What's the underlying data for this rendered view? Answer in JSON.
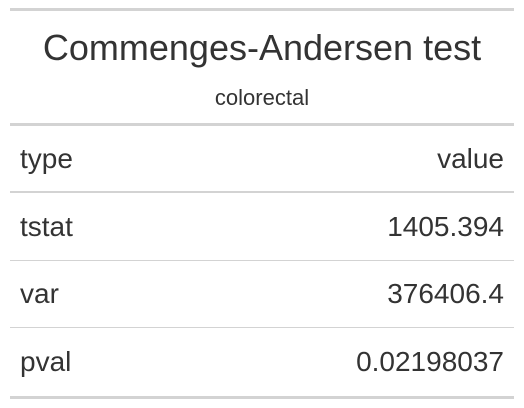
{
  "table": {
    "title": "Commenges-Andersen test",
    "subtitle": "colorectal",
    "columns": [
      "type",
      "value"
    ],
    "rows": [
      {
        "type": "tstat",
        "value": "1405.394"
      },
      {
        "type": "var",
        "value": "376406.4"
      },
      {
        "type": "pval",
        "value": "0.02198037"
      }
    ]
  },
  "colors": {
    "text": "#333333",
    "rule": "#d3d3d3",
    "background": "#ffffff"
  }
}
